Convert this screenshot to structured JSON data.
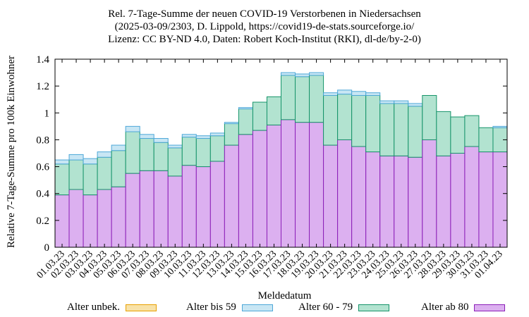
{
  "chart_data": {
    "type": "bar",
    "stacked": true,
    "title_lines": [
      "Rel. 7-Tage-Summe der neuen COVID-19 Verstorbenen in Niedersachsen",
      "(2025-03-09/2303, D. Lippold, https://covid19-de-stats.sourceforge.io/",
      "Lizenz: CC BY-ND 4.0, Daten: Robert Koch-Institut (RKI), dl-de/by-2-0)"
    ],
    "xlabel": "Meldedatum",
    "ylabel": "Relative 7-Tage-Summe pro 100k Einwohner",
    "ylim": [
      0,
      1.4
    ],
    "yticks": [
      "0",
      "0.2",
      "0.4",
      "0.6",
      "0.8",
      "1",
      "1.2",
      "1.4"
    ],
    "categories": [
      "01.03.23",
      "02.03.23",
      "03.03.23",
      "04.03.23",
      "05.03.23",
      "06.03.23",
      "07.03.23",
      "08.03.23",
      "09.03.23",
      "10.03.23",
      "11.03.23",
      "12.03.23",
      "13.03.23",
      "14.03.23",
      "15.03.23",
      "16.03.23",
      "17.03.23",
      "18.03.23",
      "19.03.23",
      "20.03.23",
      "21.03.23",
      "22.03.23",
      "23.03.23",
      "24.03.23",
      "25.03.23",
      "26.03.23",
      "27.03.23",
      "28.03.23",
      "29.03.23",
      "30.03.23",
      "31.03.23",
      "01.04.23"
    ],
    "series": [
      {
        "name": "Alter ab 80",
        "fill": "#dcb0f0",
        "stroke": "#8c1fb8",
        "values": [
          0.39,
          0.43,
          0.39,
          0.43,
          0.45,
          0.55,
          0.57,
          0.57,
          0.53,
          0.61,
          0.6,
          0.64,
          0.76,
          0.84,
          0.87,
          0.91,
          0.95,
          0.93,
          0.93,
          0.76,
          0.8,
          0.75,
          0.71,
          0.68,
          0.68,
          0.67,
          0.8,
          0.68,
          0.7,
          0.75,
          0.71,
          0.71
        ]
      },
      {
        "name": "Alter 60 - 79",
        "fill": "#b2e3d0",
        "stroke": "#16946a",
        "values": [
          0.23,
          0.22,
          0.23,
          0.24,
          0.27,
          0.31,
          0.24,
          0.21,
          0.21,
          0.21,
          0.21,
          0.19,
          0.16,
          0.19,
          0.21,
          0.21,
          0.33,
          0.34,
          0.35,
          0.37,
          0.34,
          0.38,
          0.42,
          0.39,
          0.39,
          0.38,
          0.33,
          0.33,
          0.27,
          0.23,
          0.18,
          0.18
        ]
      },
      {
        "name": "Alter bis 59",
        "fill": "#c8e6f4",
        "stroke": "#4ea8d8",
        "values": [
          0.03,
          0.04,
          0.04,
          0.04,
          0.04,
          0.04,
          0.03,
          0.03,
          0.02,
          0.02,
          0.02,
          0.02,
          0.01,
          0.01,
          0.0,
          0.0,
          0.02,
          0.02,
          0.02,
          0.02,
          0.03,
          0.03,
          0.02,
          0.02,
          0.02,
          0.02,
          0.0,
          0.0,
          0.0,
          0.0,
          0.0,
          0.01
        ]
      },
      {
        "name": "Alter unbek.",
        "fill": "#f8e2a8",
        "stroke": "#e8a000",
        "values": [
          0,
          0,
          0,
          0,
          0,
          0,
          0,
          0,
          0,
          0,
          0,
          0,
          0,
          0,
          0,
          0,
          0,
          0,
          0,
          0,
          0,
          0,
          0,
          0,
          0,
          0,
          0,
          0,
          0,
          0,
          0,
          0
        ]
      }
    ],
    "legend": [
      {
        "name": "Alter unbek.",
        "fill": "#f8e2a8",
        "stroke": "#e8a000"
      },
      {
        "name": "Alter bis 59",
        "fill": "#c8e6f4",
        "stroke": "#4ea8d8"
      },
      {
        "name": "Alter 60 - 79",
        "fill": "#b2e3d0",
        "stroke": "#16946a"
      },
      {
        "name": "Alter ab 80",
        "fill": "#dcb0f0",
        "stroke": "#8c1fb8"
      }
    ],
    "legend_placement": "bottom"
  }
}
